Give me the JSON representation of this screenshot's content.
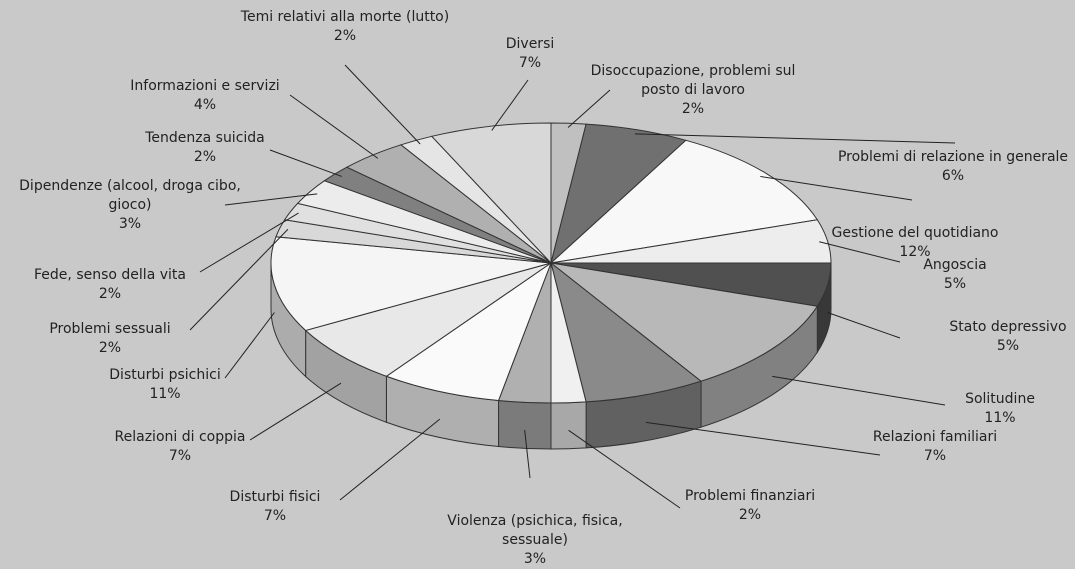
{
  "chart_data": {
    "type": "pie",
    "categories": [
      "Disoccupazione, problemi sul posto di lavoro",
      "Problemi di relazione in generale",
      "Gestione del quotidiano",
      "Angoscia",
      "Stato depressivo",
      "Solitudine",
      "Relazioni familiari",
      "Problemi finanziari",
      "Violenza (psichica, fisica, sessuale)",
      "Disturbi fisici",
      "Relazioni di coppia",
      "Disturbi psichici",
      "Problemi sessuali",
      "Fede, senso della vita",
      "Dipendenze (alcool, droga cibo, gioco)",
      "Tendenza suicida",
      "Informazioni e servizi",
      "Temi relativi alla morte (lutto)",
      "Diversi"
    ],
    "values": [
      2,
      6,
      12,
      5,
      5,
      11,
      7,
      2,
      3,
      7,
      7,
      11,
      2,
      2,
      3,
      2,
      4,
      2,
      7
    ],
    "value_labels": [
      "2%",
      "6%",
      "12%",
      "5%",
      "5%",
      "11%",
      "7%",
      "2%",
      "3%",
      "7%",
      "7%",
      "11%",
      "2%",
      "2%",
      "3%",
      "2%",
      "4%",
      "2%",
      "7%"
    ],
    "colors": [
      "#c0c0c0",
      "#707070",
      "#f8f8f8",
      "#ededed",
      "#505050",
      "#b8b8b8",
      "#8a8a8a",
      "#f0f0f0",
      "#b0b0b0",
      "#fafafa",
      "#e8e8e8",
      "#f5f5f5",
      "#d8d8d8",
      "#e0e0e0",
      "#ececec",
      "#808080",
      "#b0b0b0",
      "#e5e5e5",
      "#d8d8d8"
    ]
  }
}
